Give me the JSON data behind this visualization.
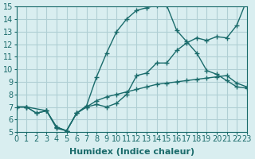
{
  "xlabel": "Humidex (Indice chaleur)",
  "ylabel": "",
  "bg_color": "#d9eef0",
  "grid_color": "#b0cfd4",
  "line_color": "#1a6b6b",
  "xlim": [
    0,
    23
  ],
  "ylim": [
    5,
    15
  ],
  "xticks": [
    0,
    1,
    2,
    3,
    4,
    5,
    6,
    7,
    8,
    9,
    10,
    11,
    12,
    13,
    14,
    15,
    16,
    17,
    18,
    19,
    20,
    21,
    22,
    23
  ],
  "yticks": [
    5,
    6,
    7,
    8,
    9,
    10,
    11,
    12,
    13,
    14,
    15
  ],
  "curve1_x": [
    0,
    1,
    2,
    3,
    4,
    5,
    6,
    7,
    8,
    9,
    10,
    11,
    12,
    13,
    14,
    15,
    16,
    17,
    18,
    19,
    20,
    21,
    22,
    23
  ],
  "curve1_y": [
    7.0,
    7.0,
    6.5,
    6.7,
    5.3,
    5.1,
    6.5,
    7.0,
    7.2,
    7.0,
    7.3,
    8.0,
    9.5,
    9.7,
    10.5,
    10.5,
    11.5,
    12.1,
    12.5,
    12.3,
    12.6,
    12.5,
    13.5,
    15.5
  ],
  "curve2_x": [
    0,
    1,
    3,
    4,
    5,
    6,
    7,
    8,
    9,
    10,
    11,
    12,
    13,
    14,
    15,
    16,
    17,
    18,
    19,
    20,
    21,
    22,
    23
  ],
  "curve2_y": [
    7.0,
    7.0,
    6.7,
    5.4,
    5.1,
    6.5,
    7.1,
    9.4,
    11.3,
    13.0,
    14.0,
    14.7,
    14.9,
    15.1,
    15.1,
    13.1,
    12.2,
    11.3,
    9.9,
    9.6,
    9.1,
    8.6,
    8.5
  ],
  "curve3_x": [
    0,
    1,
    2,
    3,
    4,
    5,
    6,
    7,
    8,
    9,
    10,
    11,
    12,
    13,
    14,
    15,
    16,
    17,
    18,
    19,
    20,
    21,
    22,
    23
  ],
  "curve3_y": [
    7.0,
    7.0,
    6.5,
    6.7,
    5.4,
    5.1,
    6.5,
    7.0,
    7.5,
    7.8,
    8.0,
    8.2,
    8.4,
    8.6,
    8.8,
    8.9,
    9.0,
    9.1,
    9.2,
    9.3,
    9.4,
    9.5,
    8.9,
    8.6
  ],
  "tick_fontsize": 7,
  "label_fontsize": 8
}
